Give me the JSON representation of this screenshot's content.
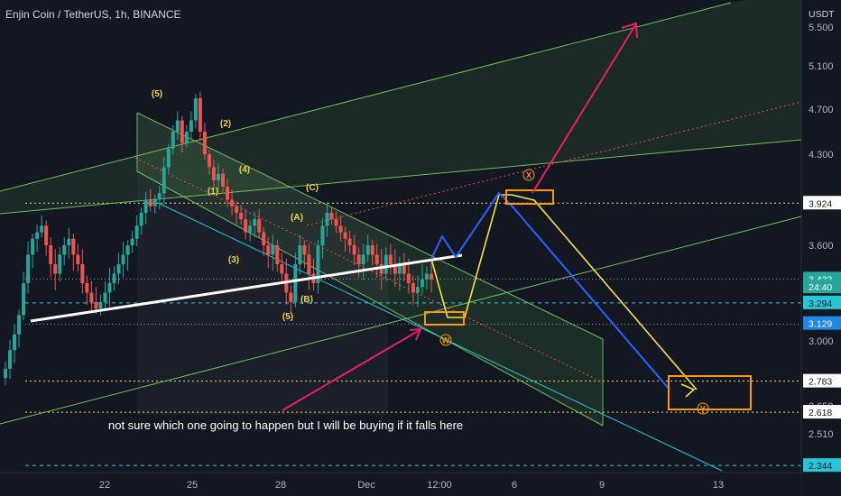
{
  "header": {
    "symbol_title": "Enjin Coin / TetherUS, 1h, BINANCE",
    "currency": "USDT"
  },
  "annotation_text": "not sure which one going to happen but I will be buying if it falls here",
  "chart_data": {
    "type": "candlestick",
    "title": "Enjin Coin / TetherUS, 1h, BINANCE",
    "x_ticks": [
      "22",
      "25",
      "28",
      "Dec",
      "12:00",
      "6",
      "9",
      "13"
    ],
    "y_ticks": [
      2.51,
      2.65,
      3.0,
      3.3,
      3.6,
      4.3,
      4.7,
      5.1,
      5.5
    ],
    "y_tick_labels": [
      "2.510",
      "2.650",
      "3.000",
      "3.300",
      "3.600",
      "4.300",
      "4.700",
      "5.100",
      "5.500"
    ],
    "ylim": [
      2.3,
      5.55
    ],
    "price_tags": [
      {
        "label": "3.924",
        "value": 3.924,
        "color": "#ffffff",
        "text_color": "#131722"
      },
      {
        "label": "3.422",
        "value": 3.422,
        "color": "#26a69a",
        "text_color": "#ffffff"
      },
      {
        "label": "24:40",
        "value": 3.38,
        "color": "#26a69a",
        "text_color": "#ffffff"
      },
      {
        "label": "3.294",
        "value": 3.294,
        "color": "#26c6da",
        "text_color": "#131722"
      },
      {
        "label": "3.129",
        "value": 3.135,
        "color": "#1e88e5",
        "text_color": "#ffffff"
      },
      {
        "label": "2.783",
        "value": 2.783,
        "color": "#ffffff",
        "text_color": "#131722"
      },
      {
        "label": "2.618",
        "value": 2.618,
        "color": "#ffffff",
        "text_color": "#131722"
      },
      {
        "label": "2.344",
        "value": 2.33,
        "color": "#26c6da",
        "text_color": "#131722"
      }
    ],
    "wave_labels": [
      "(5)",
      "(2)",
      "(4)",
      "(1)",
      "(3)",
      "(5)",
      "(C)",
      "(A)",
      "(B)"
    ],
    "circled_labels": [
      "X",
      "W",
      "Y"
    ],
    "close_series": [
      2.85,
      2.95,
      3.05,
      3.2,
      3.4,
      3.55,
      3.65,
      3.7,
      3.75,
      3.6,
      3.5,
      3.45,
      3.55,
      3.6,
      3.65,
      3.55,
      3.5,
      3.4,
      3.35,
      3.3,
      3.25,
      3.3,
      3.35,
      3.4,
      3.45,
      3.5,
      3.55,
      3.6,
      3.65,
      3.75,
      3.85,
      3.95,
      3.9,
      3.95,
      4.0,
      4.2,
      4.35,
      4.5,
      4.6,
      4.4,
      4.5,
      4.6,
      4.8,
      4.5,
      4.3,
      4.2,
      4.1,
      4.15,
      4.05,
      3.95,
      3.9,
      3.85,
      3.8,
      3.7,
      3.75,
      3.8,
      3.7,
      3.6,
      3.55,
      3.6,
      3.5,
      3.45,
      3.35,
      3.3,
      3.5,
      3.6,
      3.55,
      3.45,
      3.4,
      3.6,
      3.75,
      3.85,
      3.8,
      3.75,
      3.7,
      3.65,
      3.6,
      3.55,
      3.5,
      3.55,
      3.6,
      3.55,
      3.5,
      3.45,
      3.55,
      3.5,
      3.45,
      3.5,
      3.45,
      3.4,
      3.35,
      3.38,
      3.42,
      3.45,
      3.42
    ]
  }
}
